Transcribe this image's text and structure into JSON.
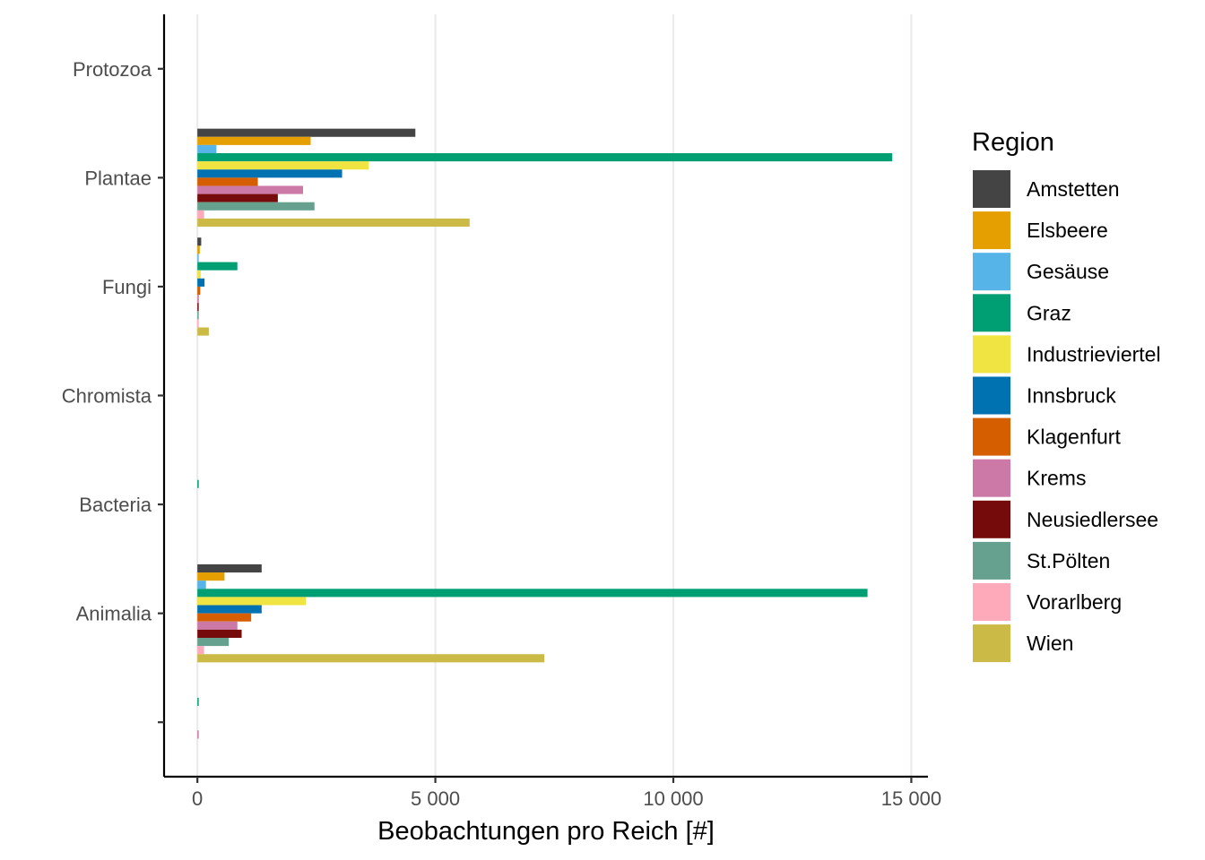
{
  "chart_data": {
    "type": "bar",
    "orientation": "horizontal",
    "title": "",
    "xlabel": "Beobachtungen pro Reich [#]",
    "ylabel": "",
    "xlim": [
      -700,
      15350
    ],
    "x_ticks": [
      0,
      5000,
      10000,
      15000
    ],
    "x_tick_labels": [
      "0",
      "5 000",
      "10 000",
      "15 000"
    ],
    "categories": [
      "",
      "Animalia",
      "Bacteria",
      "Chromista",
      "Fungi",
      "Plantae",
      "Protozoa"
    ],
    "grid": "vertical-major",
    "legend": {
      "title": "Region",
      "position": "right"
    },
    "series": [
      {
        "name": "Amstetten",
        "color": "#444444",
        "values": [
          0,
          1350,
          0,
          0,
          80,
          4580,
          0
        ]
      },
      {
        "name": "Elsbeere",
        "color": "#E69F00",
        "values": [
          0,
          570,
          0,
          0,
          50,
          2380,
          0
        ]
      },
      {
        "name": "Gesäuse",
        "color": "#56B4E9",
        "values": [
          0,
          180,
          0,
          0,
          20,
          400,
          0
        ]
      },
      {
        "name": "Graz",
        "color": "#009E73",
        "values": [
          15,
          14080,
          15,
          0,
          840,
          14600,
          0
        ]
      },
      {
        "name": "Industrieviertel",
        "color": "#F0E442",
        "values": [
          0,
          2280,
          0,
          0,
          70,
          3600,
          0
        ]
      },
      {
        "name": "Innsbruck",
        "color": "#0072B2",
        "values": [
          0,
          1350,
          0,
          0,
          150,
          3040,
          0
        ]
      },
      {
        "name": "Klagenfurt",
        "color": "#D55E00",
        "values": [
          0,
          1130,
          0,
          0,
          60,
          1270,
          0
        ]
      },
      {
        "name": "Krems",
        "color": "#CC79A7",
        "values": [
          10,
          840,
          0,
          0,
          30,
          2220,
          0
        ]
      },
      {
        "name": "Neusiedlersee",
        "color": "#760B0B",
        "values": [
          0,
          930,
          0,
          0,
          20,
          1690,
          0
        ]
      },
      {
        "name": "St.Pölten",
        "color": "#66A08E",
        "values": [
          0,
          660,
          0,
          0,
          25,
          2460,
          0
        ]
      },
      {
        "name": "Vorarlberg",
        "color": "#FFAABB",
        "values": [
          0,
          140,
          0,
          0,
          10,
          140,
          0
        ]
      },
      {
        "name": "Wien",
        "color": "#CBBA46",
        "values": [
          0,
          7290,
          0,
          0,
          240,
          5720,
          0
        ]
      }
    ]
  }
}
